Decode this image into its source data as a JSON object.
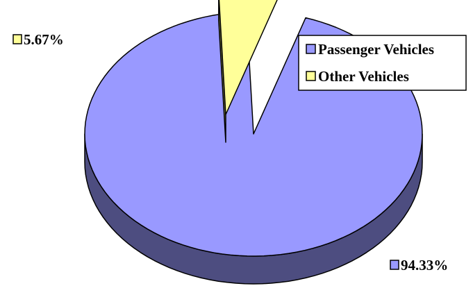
{
  "chart_data": {
    "type": "pie",
    "style": "3d-exploded",
    "series": [
      {
        "name": "Passenger Vehicles",
        "value": 94.33,
        "label": "94.33%",
        "color": "#9999ff",
        "side_color": "#4d4d80"
      },
      {
        "name": "Other Vehicles",
        "value": 5.67,
        "label": "5.67%",
        "color": "#ffff99",
        "side_color": "#80804d"
      }
    ],
    "legend": {
      "position": "top-right"
    }
  }
}
